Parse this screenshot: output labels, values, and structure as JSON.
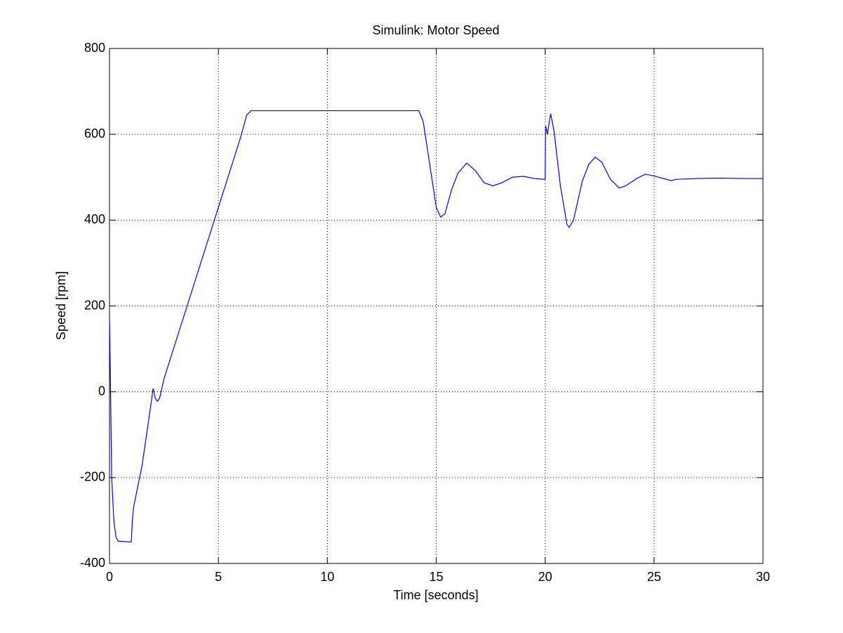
{
  "chart_data": {
    "type": "line",
    "title": "Simulink: Motor Speed",
    "x_label": "Time [seconds]",
    "y_label": "Speed [rpm]",
    "x": [
      0,
      0.05,
      0.1,
      0.2,
      0.3,
      0.4,
      1.0,
      1.05,
      1.1,
      1.5,
      1.9,
      2.0,
      2.1,
      2.2,
      2.3,
      2.5,
      3,
      4,
      5,
      6,
      6.3,
      6.5,
      14.2,
      14.4,
      14.7,
      15,
      15.2,
      15.4,
      15.7,
      16,
      16.4,
      16.8,
      17.2,
      17.6,
      18,
      18.5,
      19,
      19.5,
      20,
      20.02,
      20.1,
      20.25,
      20.4,
      20.7,
      21,
      21.1,
      21.3,
      21.7,
      22,
      22.3,
      22.6,
      23,
      23.4,
      23.7,
      24.2,
      24.6,
      25,
      25.5,
      25.8,
      26,
      27,
      28,
      29,
      30
    ],
    "values": [
      170,
      0,
      -200,
      -300,
      -340,
      -348,
      -350,
      -300,
      -270,
      -170,
      -30,
      8,
      -15,
      -22,
      -15,
      30,
      110,
      270,
      430,
      590,
      645,
      655,
      655,
      630,
      530,
      430,
      407,
      415,
      470,
      510,
      533,
      515,
      487,
      480,
      487,
      500,
      502,
      497,
      495,
      620,
      600,
      648,
      610,
      480,
      390,
      383,
      400,
      490,
      530,
      547,
      535,
      495,
      475,
      480,
      497,
      507,
      503,
      496,
      492,
      495,
      497,
      498,
      497,
      497
    ],
    "color": "#0000ff",
    "xlim": [
      0,
      30
    ],
    "xticks": [
      0,
      5,
      10,
      15,
      20,
      25,
      30
    ],
    "ylim": [
      -400,
      800
    ],
    "yticks": [
      -400,
      -200,
      0,
      200,
      400,
      600,
      800
    ],
    "grid": true
  }
}
